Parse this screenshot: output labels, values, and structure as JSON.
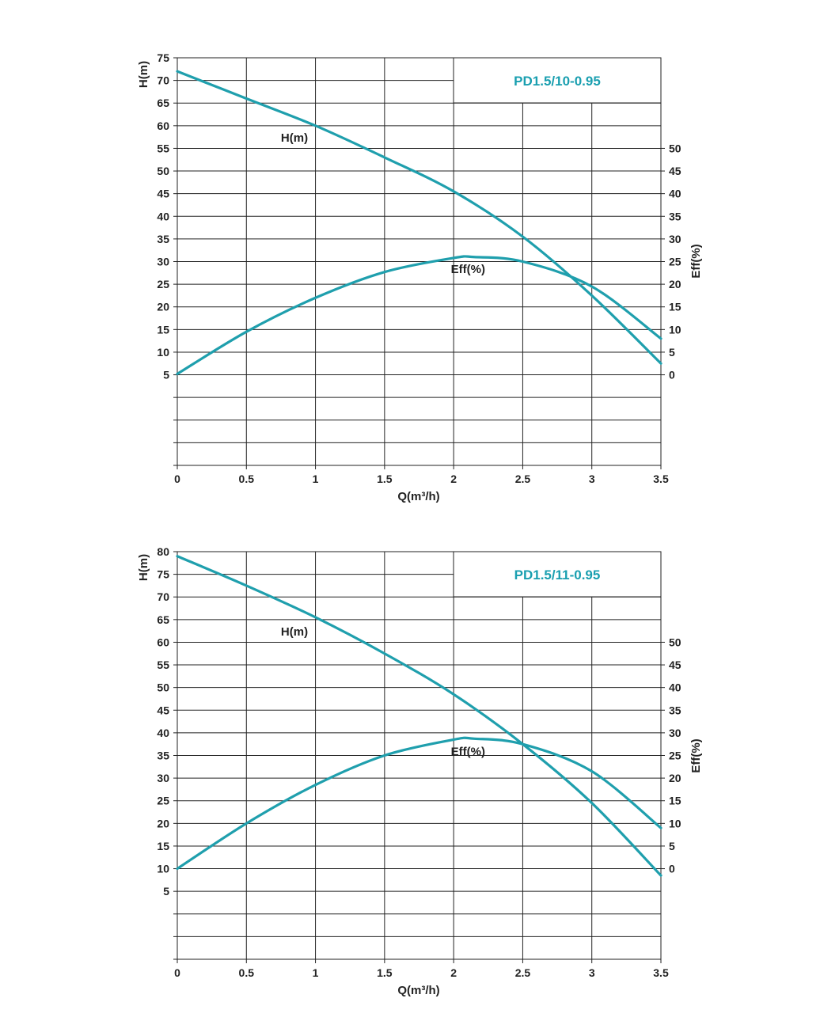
{
  "colors": {
    "curve": "#1f9fad",
    "grid": "#222222",
    "model_text": "#1a9fb0"
  },
  "chart_data": [
    {
      "type": "line",
      "title": "PD1.5/10-0.95",
      "xlabel": "Q(m³/h)",
      "ylabel": "H(m)",
      "y2label": "Eff(%)",
      "xlim": [
        0,
        3.5
      ],
      "ylim": [
        -15,
        75
      ],
      "y2lim": [
        -20,
        70
      ],
      "grid": true,
      "x_ticks": [
        "0",
        "0.5",
        "1",
        "1.5",
        "2",
        "2.5",
        "3",
        "3.5"
      ],
      "y_ticks": [
        5,
        10,
        15,
        20,
        25,
        30,
        35,
        40,
        45,
        50,
        55,
        60,
        65,
        70,
        75
      ],
      "y2_ticks": [
        0,
        5,
        10,
        15,
        20,
        25,
        30,
        35,
        40,
        45,
        50
      ],
      "series": [
        {
          "name": "H(m)",
          "axis": "left",
          "x": [
            0,
            0.5,
            1,
            1.5,
            2,
            2.5,
            3,
            3.5
          ],
          "y": [
            72,
            66,
            60,
            53,
            45.5,
            35.5,
            22.5,
            7.5
          ],
          "label_text": "H(m)",
          "label_at": [
            0.75,
            56.5
          ]
        },
        {
          "name": "Eff(%)",
          "axis": "right",
          "x": [
            0,
            0.5,
            1,
            1.5,
            2,
            2.15,
            2.5,
            3,
            3.5
          ],
          "y": [
            0.2,
            9.5,
            17,
            22.7,
            25.8,
            26,
            25,
            19.5,
            8
          ],
          "label_text": "Eff(%)",
          "label_at": [
            1.98,
            22.5
          ]
        }
      ]
    },
    {
      "type": "line",
      "title": "PD1.5/11-0.95",
      "xlabel": "Q(m³/h)",
      "ylabel": "H(m)",
      "y2label": "Eff(%)",
      "xlim": [
        0,
        3.5
      ],
      "ylim": [
        -10,
        80
      ],
      "y2lim": [
        -20,
        70
      ],
      "grid": true,
      "x_ticks": [
        "0",
        "0.5",
        "1",
        "1.5",
        "2",
        "2.5",
        "3",
        "3.5"
      ],
      "y_ticks": [
        5,
        10,
        15,
        20,
        25,
        30,
        35,
        40,
        45,
        50,
        55,
        60,
        65,
        70,
        75,
        80
      ],
      "y2_ticks": [
        0,
        5,
        10,
        15,
        20,
        25,
        30,
        35,
        40,
        45,
        50
      ],
      "series": [
        {
          "name": "H(m)",
          "axis": "left",
          "x": [
            0,
            0.5,
            1,
            1.5,
            2,
            2.5,
            3,
            3.5
          ],
          "y": [
            79,
            72.5,
            65.5,
            57.5,
            48.5,
            37.5,
            24.5,
            8.5
          ],
          "label_text": "H(m)",
          "label_at": [
            0.75,
            61.5
          ]
        },
        {
          "name": "Eff(%)",
          "axis": "right",
          "x": [
            0,
            0.5,
            1,
            1.5,
            2,
            2.15,
            2.5,
            3,
            3.5
          ],
          "y": [
            0,
            10,
            18.5,
            25,
            28.5,
            28.7,
            27.5,
            21.5,
            9
          ],
          "label_text": "Eff(%)",
          "label_at": [
            1.98,
            25
          ]
        }
      ]
    }
  ]
}
